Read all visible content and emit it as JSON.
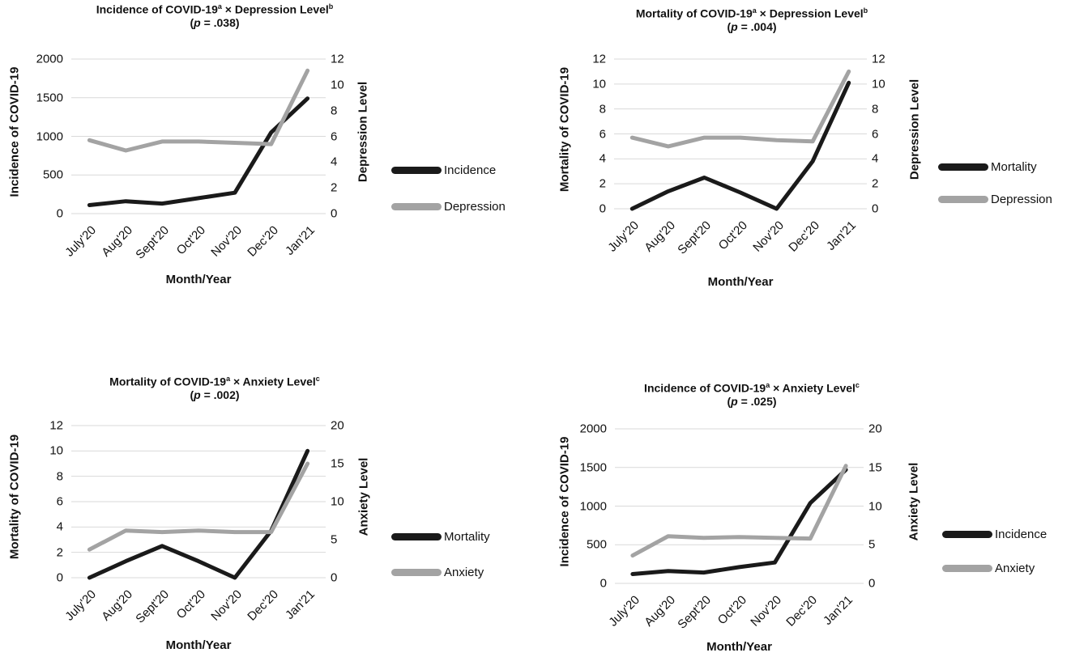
{
  "colors": {
    "dark": "#1a1a1a",
    "light": "#a3a3a3",
    "grid": "#d9d9d9"
  },
  "chart_data": [
    {
      "type": "line",
      "title": "Incidence of COVID-19",
      "title_sup_1": "a",
      "title_mid": " × Depression Level",
      "title_sup_2": "b",
      "pvalue_pre": "(",
      "pvalue_p": "p",
      "pvalue_post": " = .038)",
      "xlabel": "Month/Year",
      "ylabel": "Incidence of COVID-19",
      "y2label": "Depression Level",
      "categories": [
        "July'20",
        "Aug'20",
        "Sept'20",
        "Oct'20",
        "Nov'20",
        "Dec'20",
        "Jan'21"
      ],
      "ylim": [
        0,
        2000
      ],
      "yticks": [
        "0",
        "500",
        "1000",
        "1500",
        "2000"
      ],
      "y2lim": [
        0,
        12
      ],
      "y2ticks": [
        "0",
        "2",
        "4",
        "6",
        "8",
        "10",
        "12"
      ],
      "grid": true,
      "legend_position": "right",
      "series": [
        {
          "name": "Incidence",
          "axis": "left",
          "color": "#1a1a1a",
          "values": [
            110,
            160,
            130,
            200,
            270,
            1050,
            1490
          ]
        },
        {
          "name": "Depression",
          "axis": "right",
          "color": "#a3a3a3",
          "values": [
            5.7,
            4.9,
            5.6,
            5.6,
            5.5,
            5.4,
            11.1
          ]
        }
      ]
    },
    {
      "type": "line",
      "title": "Mortality of COVID-19",
      "title_sup_1": "a",
      "title_mid": " × Depression Level",
      "title_sup_2": "b",
      "pvalue_pre": "(",
      "pvalue_p": "p",
      "pvalue_post": " = .004)",
      "xlabel": "Month/Year",
      "ylabel": "Mortality of COVID-19",
      "y2label": "Depression Level",
      "categories": [
        "July'20",
        "Aug'20",
        "Sept'20",
        "Oct'20",
        "Nov'20",
        "Dec'20",
        "Jan'21"
      ],
      "ylim": [
        0,
        12
      ],
      "yticks": [
        "0",
        "2",
        "4",
        "6",
        "8",
        "10",
        "12"
      ],
      "y2lim": [
        0,
        12
      ],
      "y2ticks": [
        "0",
        "2",
        "4",
        "6",
        "8",
        "10",
        "12"
      ],
      "grid": true,
      "legend_position": "right",
      "series": [
        {
          "name": "Mortality",
          "axis": "left",
          "color": "#1a1a1a",
          "values": [
            0,
            1.4,
            2.5,
            1.3,
            0,
            3.8,
            10.1
          ]
        },
        {
          "name": "Depression",
          "axis": "right",
          "color": "#a3a3a3",
          "values": [
            5.7,
            5.0,
            5.7,
            5.7,
            5.5,
            5.4,
            11.0
          ]
        }
      ]
    },
    {
      "type": "line",
      "title": "Mortality of COVID-19",
      "title_sup_1": "a",
      "title_mid": " × Anxiety Level",
      "title_sup_2": "c",
      "pvalue_pre": "(",
      "pvalue_p": "p",
      "pvalue_post": " = .002)",
      "xlabel": "Month/Year",
      "ylabel": "Mortality of COVID-19",
      "y2label": "Anxiety Level",
      "categories": [
        "July'20",
        "Aug'20",
        "Sept'20",
        "Oct'20",
        "Nov'20",
        "Dec'20",
        "Jan'21"
      ],
      "ylim": [
        0,
        12
      ],
      "yticks": [
        "0",
        "2",
        "4",
        "6",
        "8",
        "10",
        "12"
      ],
      "y2lim": [
        0,
        20
      ],
      "y2ticks": [
        "0",
        "5",
        "10",
        "15",
        "20"
      ],
      "grid": true,
      "legend_position": "right",
      "series": [
        {
          "name": "Mortality",
          "axis": "left",
          "color": "#1a1a1a",
          "values": [
            0,
            1.3,
            2.5,
            1.3,
            0,
            3.7,
            10.0
          ]
        },
        {
          "name": "Anxiety",
          "axis": "right",
          "color": "#a3a3a3",
          "values": [
            3.7,
            6.2,
            6.0,
            6.2,
            6.0,
            6.0,
            15.0
          ]
        }
      ]
    },
    {
      "type": "line",
      "title": "Incidence of COVID-19",
      "title_sup_1": "a",
      "title_mid": " × Anxiety Level",
      "title_sup_2": "c",
      "pvalue_pre": "(",
      "pvalue_p": "p",
      "pvalue_post": " = .025)",
      "xlabel": "Month/Year",
      "ylabel": "Incidence of COVID-19",
      "y2label": "Anxiety Level",
      "categories": [
        "July'20",
        "Aug'20",
        "Sept'20",
        "Oct'20",
        "Nov'20",
        "Dec'20",
        "Jan'21"
      ],
      "ylim": [
        0,
        2000
      ],
      "yticks": [
        "0",
        "500",
        "1000",
        "1500",
        "2000"
      ],
      "y2lim": [
        0,
        20
      ],
      "y2ticks": [
        "0",
        "5",
        "10",
        "15",
        "20"
      ],
      "grid": true,
      "legend_position": "right",
      "series": [
        {
          "name": "Incidence",
          "axis": "left",
          "color": "#1a1a1a",
          "values": [
            120,
            160,
            140,
            210,
            270,
            1040,
            1470
          ]
        },
        {
          "name": "Anxiety",
          "axis": "right",
          "color": "#a3a3a3",
          "values": [
            3.6,
            6.1,
            5.9,
            6.0,
            5.9,
            5.8,
            15.2
          ]
        }
      ]
    }
  ]
}
